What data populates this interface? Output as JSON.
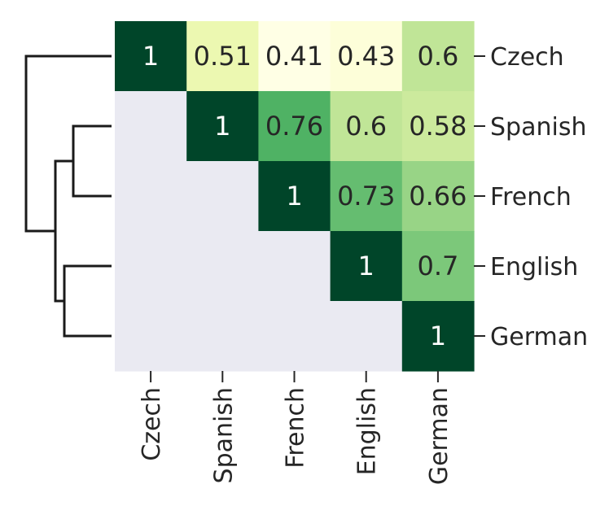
{
  "chart_data": {
    "type": "heatmap",
    "title": "",
    "xlabel": "",
    "ylabel": "",
    "rows": [
      "Czech",
      "Spanish",
      "French",
      "English",
      "German"
    ],
    "columns": [
      "Czech",
      "Spanish",
      "French",
      "English",
      "German"
    ],
    "values": [
      [
        1,
        0.51,
        0.41,
        0.43,
        0.6
      ],
      [
        null,
        1,
        0.76,
        0.6,
        0.58
      ],
      [
        null,
        null,
        1,
        0.73,
        0.66
      ],
      [
        null,
        null,
        null,
        1,
        0.7
      ],
      [
        null,
        null,
        null,
        null,
        1
      ]
    ],
    "masked": "lower-triangle",
    "colormap": "YlGn",
    "vmin": 0.41,
    "vmax": 1,
    "mask_color": "#eaeaf2",
    "row_dendrogram": true,
    "dendrogram_merges": [
      [
        "Spanish",
        "French"
      ],
      [
        "English",
        "German"
      ],
      [
        "Spanish+French",
        "English+German"
      ],
      [
        "Czech",
        "Spanish+French+English+German"
      ]
    ]
  }
}
